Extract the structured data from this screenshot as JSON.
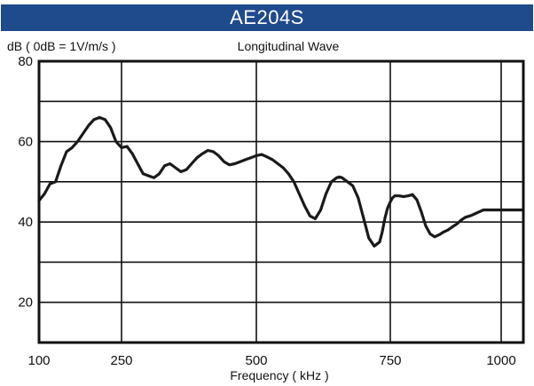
{
  "chart_data": {
    "type": "line",
    "title": "AE204S",
    "subtitle": "Longitudinal Wave",
    "ylabel": "dB ( 0dB = 1V/m/s )",
    "xlabel": "Frequency ( kHz )",
    "xlim": [
      100,
      1050
    ],
    "ylim": [
      10,
      80
    ],
    "x_ticks": [
      100,
      250,
      500,
      750,
      1000
    ],
    "x_tick_labels": [
      "100",
      "250",
      "500",
      "750",
      "1000"
    ],
    "y_ticks": [
      20,
      40,
      60,
      80
    ],
    "y_tick_labels": [
      "20",
      "40",
      "60",
      "80"
    ],
    "grid": true,
    "line_color": "#1a1a1a",
    "header_color": "#1f4a8c",
    "series": [
      {
        "x": [
          100,
          110,
          120,
          130,
          140,
          150,
          160,
          170,
          180,
          190,
          200,
          210,
          220,
          230,
          240,
          250,
          260,
          270,
          280,
          290,
          300,
          310,
          320,
          330,
          340,
          350,
          360,
          370,
          380,
          390,
          400,
          410,
          420,
          430,
          440,
          450,
          460,
          470,
          480,
          490,
          500,
          510,
          520,
          530,
          540,
          550,
          560,
          570,
          580,
          590,
          600,
          610,
          620,
          630,
          640,
          650,
          655,
          660,
          670,
          680,
          690,
          700,
          710,
          720,
          730,
          735,
          740,
          745,
          750,
          755,
          760,
          770,
          780,
          790,
          800,
          810,
          820,
          830,
          840,
          850,
          860,
          870,
          880,
          890,
          900,
          910,
          920,
          930,
          940,
          950,
          960,
          970,
          980,
          990,
          1000,
          1010,
          1020,
          1030,
          1040,
          1050
        ],
        "values": [
          45.3,
          47.0,
          49.5,
          50.0,
          54.0,
          57.5,
          58.5,
          60.0,
          62.0,
          64.0,
          65.5,
          66.0,
          65.5,
          63.5,
          60.0,
          58.5,
          58.8,
          57.0,
          54.5,
          52.0,
          51.5,
          51.0,
          52.0,
          54.0,
          54.5,
          53.5,
          52.5,
          53.0,
          54.5,
          56.0,
          57.0,
          57.8,
          57.5,
          56.5,
          55.0,
          54.2,
          54.5,
          55.0,
          55.5,
          56.0,
          56.5,
          56.8,
          56.2,
          55.5,
          54.5,
          53.5,
          52.0,
          50.0,
          47.0,
          44.0,
          41.5,
          40.8,
          43.0,
          47.0,
          50.0,
          51.0,
          51.2,
          51.0,
          50.0,
          49.0,
          46.0,
          41.0,
          36.0,
          34.0,
          35.0,
          37.5,
          41.0,
          43.5,
          45.0,
          46.0,
          46.5,
          46.5,
          46.3,
          46.5,
          46.8,
          45.5,
          42.5,
          39.0,
          37.0,
          36.3,
          36.8,
          37.5,
          38.0,
          38.8,
          39.5,
          40.5,
          41.2,
          41.5,
          42.0,
          42.5,
          43.0,
          43.0,
          43.0,
          43.0,
          43.0,
          43.0,
          43.0,
          43.0,
          43.0,
          43.0
        ]
      }
    ]
  }
}
